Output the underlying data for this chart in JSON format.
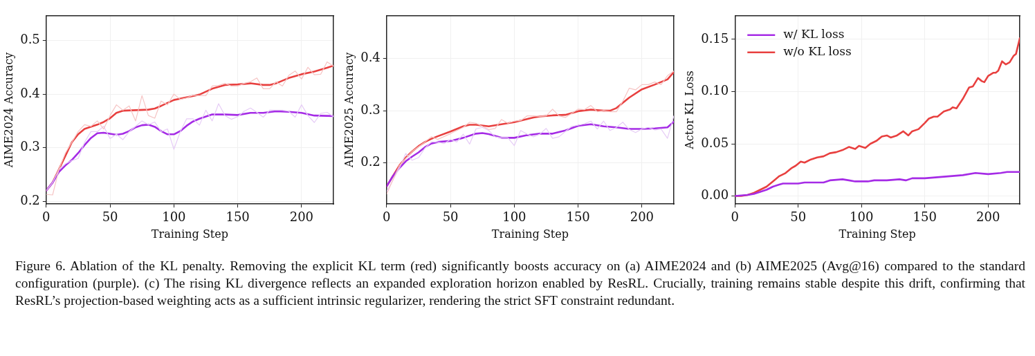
{
  "chart_data": [
    {
      "type": "line",
      "xlabel": "Training Step",
      "ylabel": "AIME2024 Accuracy",
      "xlim": [
        0,
        225
      ],
      "xticks": [
        0,
        50,
        100,
        150,
        200
      ],
      "ylim": [
        0.195,
        0.546
      ],
      "yticks": [
        0.2,
        0.3,
        0.4,
        0.5
      ],
      "grid": true,
      "legend": false,
      "marker": "none",
      "line_style": "solid",
      "annotations": [
        "Figure 6. Ablation of the KL penalty. Removing the explicit KL term (red) significantly boosts accuracy on (a) AIME2024 and (b) AIME2025 (Avg@16) compared to the standard configuration (purple). (c) The rising KL divergence reflects an expanded exploration horizon enabled by ResRL. Crucially, training remains stable despite this drift, confirming that ResRL’s projection-based weighting acts as a sufficient intrinsic regularizer, rendering the strict SFT constraint redundant."
      ],
      "series": [
        {
          "color": "#f6c4c4",
          "x": [
            0,
            5,
            10,
            15,
            20,
            25,
            30,
            35,
            40,
            45,
            50,
            55,
            60,
            65,
            70,
            75,
            80,
            85,
            90,
            95,
            100,
            105,
            110,
            115,
            120,
            125,
            130,
            135,
            140,
            145,
            150,
            155,
            160,
            165,
            170,
            175,
            180,
            185,
            190,
            195,
            200,
            205,
            210,
            215,
            220,
            225
          ],
          "values": [
            0.213,
            0.212,
            0.26,
            0.29,
            0.31,
            0.33,
            0.343,
            0.34,
            0.35,
            0.335,
            0.36,
            0.38,
            0.37,
            0.378,
            0.35,
            0.397,
            0.36,
            0.355,
            0.387,
            0.38,
            0.4,
            0.39,
            0.393,
            0.398,
            0.397,
            0.397,
            0.415,
            0.416,
            0.42,
            0.415,
            0.415,
            0.42,
            0.423,
            0.43,
            0.41,
            0.41,
            0.423,
            0.415,
            0.435,
            0.443,
            0.428,
            0.45,
            0.436,
            0.437,
            0.46,
            0.452
          ]
        },
        {
          "color": "#e6ccf6",
          "x": [
            0,
            5,
            10,
            15,
            20,
            25,
            30,
            35,
            40,
            45,
            50,
            55,
            60,
            65,
            70,
            75,
            80,
            85,
            90,
            95,
            100,
            105,
            110,
            115,
            120,
            125,
            130,
            135,
            140,
            145,
            150,
            155,
            160,
            165,
            170,
            175,
            180,
            185,
            190,
            195,
            200,
            205,
            210,
            215,
            220,
            225
          ],
          "values": [
            0.22,
            0.235,
            0.26,
            0.27,
            0.276,
            0.28,
            0.31,
            0.33,
            0.33,
            0.34,
            0.317,
            0.325,
            0.315,
            0.33,
            0.34,
            0.35,
            0.343,
            0.348,
            0.33,
            0.335,
            0.297,
            0.33,
            0.354,
            0.354,
            0.342,
            0.37,
            0.35,
            0.382,
            0.36,
            0.353,
            0.358,
            0.368,
            0.374,
            0.366,
            0.357,
            0.37,
            0.37,
            0.37,
            0.368,
            0.357,
            0.38,
            0.36,
            0.347,
            0.364,
            0.366,
            0.358
          ]
        },
        {
          "color": "#a52be6",
          "x": [
            0,
            5,
            10,
            15,
            20,
            25,
            30,
            35,
            40,
            45,
            50,
            55,
            60,
            65,
            70,
            75,
            80,
            85,
            90,
            95,
            100,
            105,
            110,
            115,
            120,
            130,
            140,
            150,
            160,
            170,
            180,
            190,
            200,
            210,
            225
          ],
          "values": [
            0.22,
            0.235,
            0.255,
            0.267,
            0.277,
            0.29,
            0.305,
            0.318,
            0.327,
            0.328,
            0.326,
            0.324,
            0.326,
            0.331,
            0.338,
            0.342,
            0.343,
            0.339,
            0.331,
            0.325,
            0.325,
            0.331,
            0.341,
            0.349,
            0.354,
            0.362,
            0.362,
            0.361,
            0.365,
            0.365,
            0.368,
            0.367,
            0.365,
            0.36,
            0.359
          ]
        },
        {
          "color": "#e8403f",
          "x": [
            0,
            5,
            10,
            15,
            20,
            25,
            30,
            40,
            45,
            50,
            55,
            60,
            70,
            80,
            85,
            90,
            100,
            110,
            120,
            130,
            140,
            150,
            160,
            170,
            175,
            180,
            190,
            200,
            210,
            220,
            225
          ],
          "values": [
            0.22,
            0.235,
            0.26,
            0.285,
            0.31,
            0.325,
            0.335,
            0.343,
            0.348,
            0.355,
            0.365,
            0.369,
            0.37,
            0.371,
            0.373,
            0.378,
            0.389,
            0.394,
            0.399,
            0.41,
            0.417,
            0.418,
            0.42,
            0.417,
            0.417,
            0.42,
            0.43,
            0.437,
            0.442,
            0.449,
            0.453
          ]
        }
      ]
    },
    {
      "type": "line",
      "xlabel": "Training Step",
      "ylabel": "AIME2025 Accuracy",
      "xlim": [
        0,
        225
      ],
      "xticks": [
        0,
        50,
        100,
        150,
        200
      ],
      "ylim": [
        0.121,
        0.482
      ],
      "yticks": [
        0.2,
        0.3,
        0.4
      ],
      "grid": true,
      "legend": false,
      "marker": "none",
      "line_style": "solid",
      "series": [
        {
          "color": "#f6c4c4",
          "x": [
            0,
            10,
            20,
            30,
            35,
            40,
            50,
            55,
            60,
            65,
            70,
            80,
            85,
            90,
            95,
            100,
            105,
            110,
            115,
            120,
            125,
            130,
            135,
            140,
            145,
            150,
            155,
            160,
            165,
            170,
            175,
            180,
            185,
            190,
            195,
            200,
            205,
            210,
            215,
            220,
            225
          ],
          "values": [
            0.14,
            0.195,
            0.222,
            0.24,
            0.25,
            0.245,
            0.256,
            0.262,
            0.268,
            0.278,
            0.276,
            0.264,
            0.266,
            0.283,
            0.276,
            0.28,
            0.281,
            0.29,
            0.29,
            0.289,
            0.29,
            0.303,
            0.29,
            0.287,
            0.295,
            0.303,
            0.302,
            0.31,
            0.298,
            0.3,
            0.298,
            0.298,
            0.318,
            0.343,
            0.34,
            0.35,
            0.35,
            0.355,
            0.35,
            0.367,
            0.376
          ]
        },
        {
          "color": "#e6ccf6",
          "x": [
            0,
            10,
            15,
            20,
            25,
            30,
            35,
            40,
            45,
            50,
            55,
            60,
            65,
            70,
            75,
            80,
            85,
            90,
            95,
            100,
            105,
            110,
            115,
            120,
            125,
            130,
            135,
            140,
            145,
            150,
            155,
            160,
            165,
            170,
            175,
            180,
            185,
            190,
            195,
            200,
            205,
            210,
            215,
            220,
            225
          ],
          "values": [
            0.145,
            0.19,
            0.218,
            0.205,
            0.21,
            0.228,
            0.24,
            0.24,
            0.237,
            0.245,
            0.24,
            0.255,
            0.236,
            0.265,
            0.268,
            0.262,
            0.25,
            0.248,
            0.248,
            0.233,
            0.262,
            0.255,
            0.25,
            0.255,
            0.266,
            0.247,
            0.25,
            0.26,
            0.27,
            0.272,
            0.275,
            0.28,
            0.265,
            0.28,
            0.262,
            0.268,
            0.278,
            0.264,
            0.258,
            0.265,
            0.268,
            0.263,
            0.265,
            0.247,
            0.29
          ]
        },
        {
          "color": "#a52be6",
          "x": [
            0,
            5,
            10,
            15,
            20,
            25,
            30,
            35,
            40,
            50,
            60,
            70,
            75,
            80,
            90,
            100,
            110,
            120,
            130,
            140,
            150,
            160,
            170,
            180,
            190,
            200,
            210,
            220,
            225
          ],
          "values": [
            0.155,
            0.175,
            0.19,
            0.203,
            0.212,
            0.22,
            0.23,
            0.237,
            0.24,
            0.242,
            0.248,
            0.256,
            0.257,
            0.255,
            0.248,
            0.248,
            0.253,
            0.256,
            0.256,
            0.262,
            0.271,
            0.274,
            0.27,
            0.268,
            0.265,
            0.265,
            0.266,
            0.268,
            0.279
          ]
        },
        {
          "color": "#e8403f",
          "x": [
            0,
            5,
            10,
            15,
            20,
            25,
            30,
            35,
            40,
            50,
            60,
            65,
            70,
            80,
            90,
            100,
            110,
            115,
            120,
            130,
            140,
            150,
            160,
            170,
            175,
            180,
            190,
            200,
            210,
            220,
            225
          ],
          "values": [
            0.155,
            0.175,
            0.195,
            0.21,
            0.222,
            0.232,
            0.24,
            0.246,
            0.251,
            0.26,
            0.27,
            0.273,
            0.273,
            0.27,
            0.274,
            0.278,
            0.284,
            0.287,
            0.289,
            0.291,
            0.292,
            0.299,
            0.302,
            0.3,
            0.3,
            0.305,
            0.325,
            0.341,
            0.35,
            0.36,
            0.374
          ]
        }
      ]
    },
    {
      "type": "line",
      "xlabel": "Training Step",
      "ylabel": "Actor KL Loss",
      "xlim": [
        0,
        225
      ],
      "xticks": [
        0,
        50,
        100,
        150,
        200
      ],
      "ylim": [
        -0.0077,
        0.1726
      ],
      "yticks": [
        {
          "value": 0,
          "label": "0.00"
        },
        {
          "value": 0.05,
          "label": "0.05"
        },
        {
          "value": 0.1,
          "label": "0.10"
        },
        {
          "value": 0.15,
          "label": "0.15"
        }
      ],
      "grid": true,
      "legend": "top left",
      "marker": "none",
      "line_style": "solid",
      "series": [
        {
          "name": "w/ KL loss",
          "color": "#a52be6",
          "x": [
            0,
            10,
            15,
            20,
            25,
            30,
            35,
            38,
            45,
            50,
            55,
            60,
            70,
            75,
            85,
            90,
            95,
            100,
            105,
            110,
            120,
            130,
            135,
            140,
            150,
            160,
            170,
            180,
            190,
            200,
            210,
            215,
            220,
            225
          ],
          "values": [
            0,
            0.001,
            0.002,
            0.004,
            0.006,
            0.009,
            0.011,
            0.012,
            0.012,
            0.012,
            0.013,
            0.013,
            0.013,
            0.015,
            0.016,
            0.015,
            0.014,
            0.014,
            0.014,
            0.015,
            0.015,
            0.016,
            0.015,
            0.017,
            0.017,
            0.018,
            0.019,
            0.02,
            0.022,
            0.021,
            0.022,
            0.023,
            0.023,
            0.023
          ]
        },
        {
          "name": "w/o KL loss",
          "color": "#e8403f",
          "x": [
            0,
            5,
            10,
            15,
            20,
            25,
            30,
            35,
            40,
            45,
            48,
            52,
            55,
            60,
            65,
            70,
            75,
            80,
            85,
            90,
            95,
            98,
            103,
            107,
            112,
            116,
            120,
            123,
            128,
            133,
            137,
            140,
            145,
            150,
            153,
            157,
            160,
            165,
            170,
            172,
            175,
            180,
            185,
            188,
            192,
            195,
            197,
            200,
            204,
            206,
            208,
            211,
            214,
            217,
            220,
            222,
            225
          ],
          "values": [
            0,
            0,
            0.001,
            0.003,
            0.006,
            0.009,
            0.014,
            0.019,
            0.022,
            0.027,
            0.029,
            0.033,
            0.032,
            0.035,
            0.037,
            0.038,
            0.041,
            0.042,
            0.044,
            0.047,
            0.045,
            0.048,
            0.046,
            0.05,
            0.053,
            0.057,
            0.058,
            0.056,
            0.058,
            0.062,
            0.058,
            0.062,
            0.064,
            0.07,
            0.074,
            0.076,
            0.076,
            0.081,
            0.083,
            0.085,
            0.084,
            0.093,
            0.104,
            0.105,
            0.113,
            0.11,
            0.109,
            0.115,
            0.118,
            0.118,
            0.12,
            0.129,
            0.126,
            0.128,
            0.134,
            0.136,
            0.151
          ]
        }
      ]
    }
  ]
}
